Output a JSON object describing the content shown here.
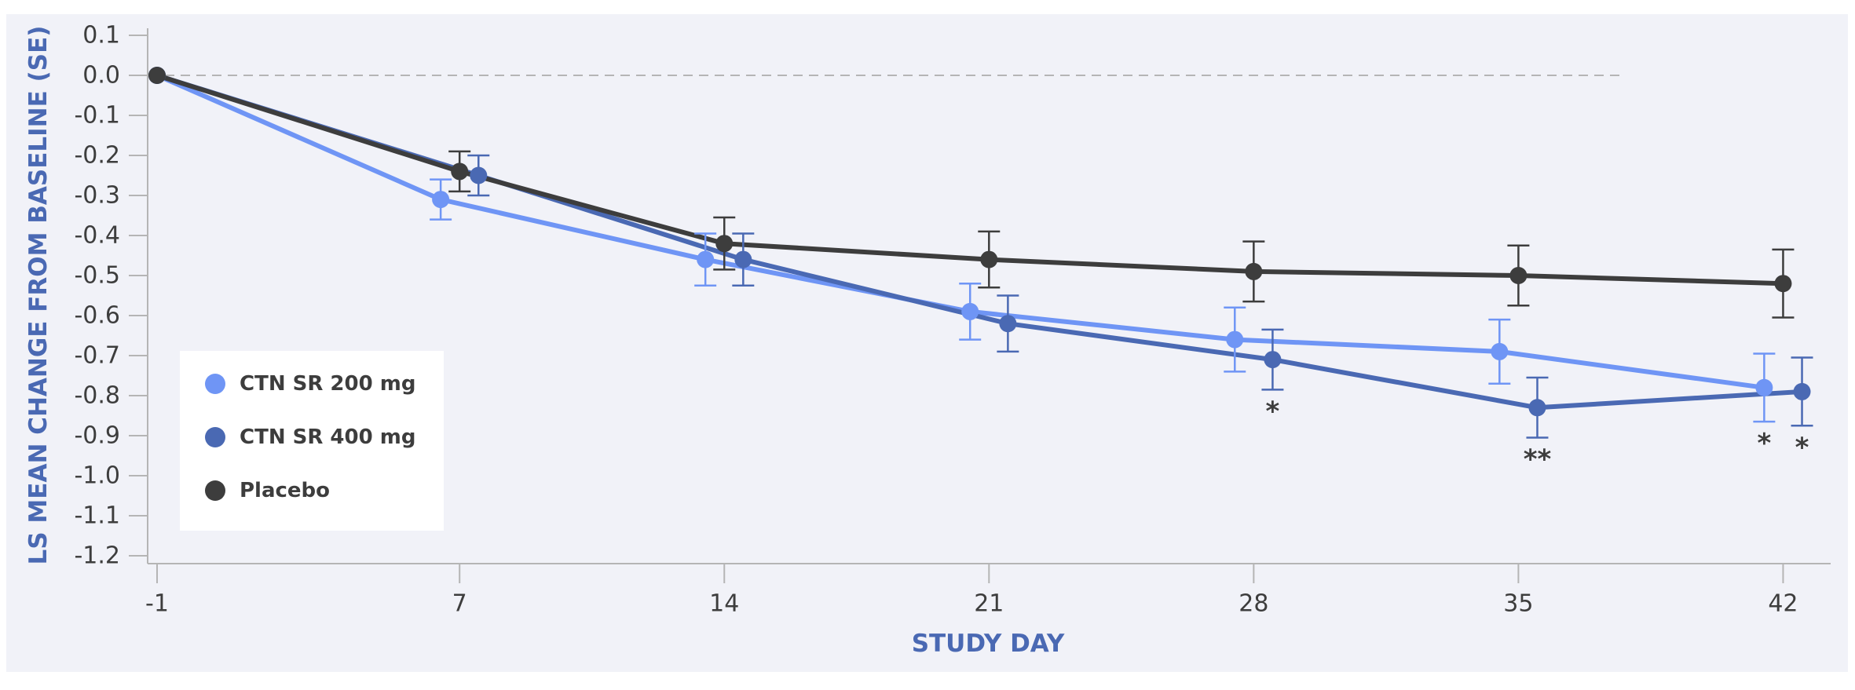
{
  "chart_data": {
    "type": "line",
    "title": "",
    "xlabel": "STUDY DAY",
    "ylabel": "LS MEAN CHANGE FROM BASELINE (SE)",
    "x_ticks": [
      "-1",
      "7",
      "14",
      "21",
      "28",
      "35",
      "42"
    ],
    "x_tick_values": [
      -1,
      7,
      14,
      21,
      28,
      35,
      42
    ],
    "xlim": [
      -1,
      42
    ],
    "y_ticks": [
      "0.1",
      "0.0",
      "-0.1",
      "-0.2",
      "-0.3",
      "-0.4",
      "-0.5",
      "-0.6",
      "-0.7",
      "-0.8",
      "-0.9",
      "-1.0",
      "-1.1",
      "-1.2"
    ],
    "y_tick_values": [
      0.1,
      0.0,
      -0.1,
      -0.2,
      -0.3,
      -0.4,
      -0.5,
      -0.6,
      -0.7,
      -0.8,
      -0.9,
      -1.0,
      -1.1,
      -1.2
    ],
    "ylim": [
      -1.2,
      0.1
    ],
    "grid": false,
    "reference_line": {
      "y": 0.0,
      "style": "dashed",
      "color": "#b5b5b5"
    },
    "legend_position": "bottom-left",
    "x": [
      -1,
      7,
      14,
      21,
      28,
      35,
      42
    ],
    "series": [
      {
        "name": "CTN SR 200 mg",
        "color": "#6f95f5",
        "x_offset_days": -0.5,
        "values": [
          0.0,
          -0.31,
          -0.46,
          -0.59,
          -0.66,
          -0.69,
          -0.78
        ],
        "se": [
          0,
          0.05,
          0.065,
          0.07,
          0.08,
          0.08,
          0.085
        ],
        "annotations": [
          "",
          "",
          "",
          "",
          "",
          "",
          "*"
        ]
      },
      {
        "name": "CTN SR 400 mg",
        "color": "#4a69b3",
        "x_offset_days": 0.5,
        "values": [
          0.0,
          -0.25,
          -0.46,
          -0.62,
          -0.71,
          -0.83,
          -0.79
        ],
        "se": [
          0,
          0.05,
          0.065,
          0.07,
          0.075,
          0.075,
          0.085
        ],
        "annotations": [
          "",
          "",
          "",
          "",
          "*",
          "**",
          "*"
        ]
      },
      {
        "name": "Placebo",
        "color": "#3d3d3d",
        "x_offset_days": 0,
        "values": [
          0.0,
          -0.24,
          -0.42,
          -0.46,
          -0.49,
          -0.5,
          -0.52
        ],
        "se": [
          0,
          0.05,
          0.065,
          0.07,
          0.075,
          0.075,
          0.085
        ],
        "annotations": [
          "",
          "",
          "",
          "",
          "",
          "",
          ""
        ]
      }
    ]
  },
  "colors": {
    "background": "#f1f2f8",
    "axis": "#b5b5b5",
    "legend_bg": "#ffffff",
    "axis_title": "#4a69b3",
    "text": "#3d3d3d"
  }
}
